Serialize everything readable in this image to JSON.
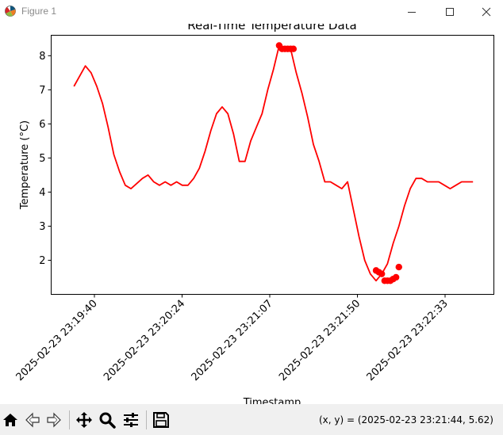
{
  "window": {
    "title": "Figure 1"
  },
  "toolbar": {
    "buttons": [
      {
        "name": "home-button",
        "icon": "home-icon"
      },
      {
        "name": "back-button",
        "icon": "arrow-left-icon"
      },
      {
        "name": "forward-button",
        "icon": "arrow-right-icon"
      },
      {
        "name": "pan-button",
        "icon": "move-icon"
      },
      {
        "name": "zoom-button",
        "icon": "magnifier-icon"
      },
      {
        "name": "configure-subplots-button",
        "icon": "sliders-icon"
      },
      {
        "name": "save-button",
        "icon": "floppy-disk-icon"
      }
    ],
    "coordinates": "(x, y) = (2025-02-23 23:21:44, 5.62)"
  },
  "chart_data": {
    "type": "line",
    "title": "Real-Time Temperature Data",
    "xlabel": "Timestamp",
    "ylabel": "Temperature (°C)",
    "color": "#ff0000",
    "x_tick_labels": [
      "2025-02-23 23:19:40",
      "2025-02-23 23:20:24",
      "2025-02-23 23:21:07",
      "2025-02-23 23:21:50",
      "2025-02-23 23:22:33"
    ],
    "y_ticks": [
      2,
      3,
      4,
      5,
      6,
      7,
      8
    ],
    "ylim": [
      1.0,
      8.6
    ],
    "xlim": [
      -12,
      221
    ],
    "x": [
      0,
      3,
      6,
      9,
      12,
      15,
      18,
      21,
      24,
      27,
      30,
      33,
      36,
      39,
      42,
      45,
      48,
      51,
      54,
      57,
      60,
      63,
      66,
      69,
      72,
      75,
      78,
      81,
      84,
      87,
      90,
      93,
      96,
      99,
      102,
      105,
      108,
      111,
      114,
      117,
      120,
      123,
      126,
      129,
      132,
      135,
      138,
      141,
      144,
      147,
      150,
      153,
      156,
      159,
      162,
      165,
      168,
      171,
      174,
      177,
      180,
      183,
      186,
      189,
      192,
      195,
      198,
      201,
      204,
      207,
      210
    ],
    "y": [
      7.1,
      7.4,
      7.7,
      7.5,
      7.1,
      6.6,
      5.9,
      5.1,
      4.6,
      4.2,
      4.1,
      4.25,
      4.4,
      4.5,
      4.3,
      4.2,
      4.3,
      4.2,
      4.3,
      4.2,
      4.2,
      4.4,
      4.7,
      5.2,
      5.8,
      6.3,
      6.5,
      6.3,
      5.7,
      4.9,
      4.9,
      5.5,
      5.9,
      6.3,
      7.0,
      7.6,
      8.3,
      8.2,
      8.2,
      7.5,
      6.9,
      6.2,
      5.4,
      4.9,
      4.3,
      4.3,
      4.2,
      4.1,
      4.3,
      3.5,
      2.7,
      2.0,
      1.6,
      1.4,
      1.6,
      1.9,
      2.5,
      3.0,
      3.6,
      4.1,
      4.4,
      4.4,
      4.3,
      4.3,
      4.3,
      4.2,
      4.1,
      4.2,
      4.3,
      4.3,
      4.3
    ],
    "markers": [
      [
        108,
        8.3
      ],
      [
        109.5,
        8.2
      ],
      [
        111,
        8.2
      ],
      [
        112.5,
        8.2
      ],
      [
        114,
        8.2
      ],
      [
        115.5,
        8.2
      ],
      [
        159,
        1.7
      ],
      [
        160.5,
        1.65
      ],
      [
        162,
        1.6
      ],
      [
        163.5,
        1.4
      ],
      [
        165,
        1.4
      ],
      [
        166.5,
        1.4
      ],
      [
        168,
        1.45
      ],
      [
        169.5,
        1.5
      ],
      [
        171,
        1.8
      ]
    ]
  }
}
